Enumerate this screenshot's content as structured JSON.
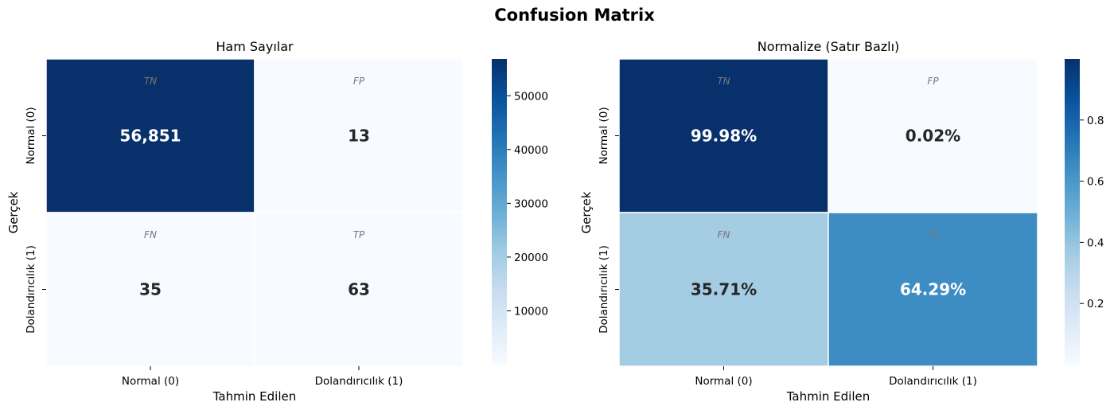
{
  "figure": {
    "title": "Confusion Matrix"
  },
  "colormap": {
    "name": "Blues",
    "stops": [
      "#f7fbff",
      "#deebf7",
      "#c6dbef",
      "#9ecae1",
      "#6baed6",
      "#4292c6",
      "#2171b5",
      "#08519c",
      "#08306b"
    ],
    "text_light": "#ffffff",
    "text_dark": "#262626"
  },
  "chart_data": [
    {
      "type": "heatmap",
      "title": "Ham Sayılar",
      "xlabel": "Tahmin Edilen",
      "ylabel": "Gerçek",
      "x_categories": [
        "Normal (0)",
        "Dolandırıcılık (1)"
      ],
      "y_categories": [
        "Normal (0)",
        "Dolandırıcılık (1)"
      ],
      "values": [
        [
          56851,
          13
        ],
        [
          35,
          63
        ]
      ],
      "annotations": [
        [
          "56,851",
          "13"
        ],
        [
          "35",
          "63"
        ]
      ],
      "cell_tags": [
        [
          "TN",
          "FP"
        ],
        [
          "FN",
          "TP"
        ]
      ],
      "color_range": [
        0,
        56851
      ],
      "colorbar_ticks": [
        10000,
        20000,
        30000,
        40000,
        50000
      ],
      "colorbar_tick_labels": [
        "10000",
        "20000",
        "30000",
        "40000",
        "50000"
      ]
    },
    {
      "type": "heatmap",
      "title": "Normalize (Satır Bazlı)",
      "xlabel": "Tahmin Edilen",
      "ylabel": "Gerçek",
      "x_categories": [
        "Normal (0)",
        "Dolandırıcılık (1)"
      ],
      "y_categories": [
        "Normal (0)",
        "Dolandırıcılık (1)"
      ],
      "values": [
        [
          0.9998,
          0.0002
        ],
        [
          0.3571,
          0.6429
        ]
      ],
      "annotations": [
        [
          "99.98%",
          "0.02%"
        ],
        [
          "35.71%",
          "64.29%"
        ]
      ],
      "cell_tags": [
        [
          "TN",
          "FP"
        ],
        [
          "FN",
          "TP"
        ]
      ],
      "color_range": [
        0.0002,
        0.9998
      ],
      "colorbar_ticks": [
        0.2,
        0.4,
        0.6,
        0.8
      ],
      "colorbar_tick_labels": [
        "0.2",
        "0.4",
        "0.6",
        "0.8"
      ]
    }
  ]
}
